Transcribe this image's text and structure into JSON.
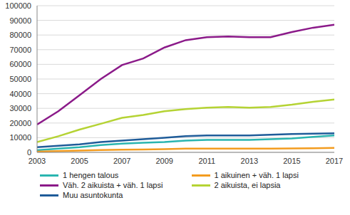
{
  "chart_data": {
    "type": "line",
    "x": [
      2003,
      2004,
      2005,
      2006,
      2007,
      2008,
      2009,
      2010,
      2011,
      2012,
      2013,
      2014,
      2015,
      2016,
      2017
    ],
    "xlim": [
      2003,
      2017
    ],
    "xticks": [
      2003,
      2005,
      2007,
      2009,
      2011,
      2013,
      2015,
      2017
    ],
    "ylim": [
      0,
      100000
    ],
    "yticks": [
      0,
      10000,
      20000,
      30000,
      40000,
      50000,
      60000,
      70000,
      80000,
      90000,
      100000
    ],
    "grid": true,
    "legend": "bottom",
    "series": [
      {
        "name": "1 hengen talous",
        "color": "#2ab5b0",
        "values": [
          1500,
          2500,
          3500,
          5000,
          6000,
          6500,
          7000,
          8000,
          8500,
          8500,
          8500,
          9000,
          9500,
          10500,
          11500
        ]
      },
      {
        "name": "1 aikuinen + väh. 1 lapsi",
        "color": "#f39c1f",
        "values": [
          500,
          800,
          1200,
          1600,
          1800,
          2000,
          2200,
          2500,
          2500,
          2500,
          2500,
          2600,
          2700,
          2800,
          3000
        ]
      },
      {
        "name": "Väh. 2 aikuista + väh. 1 lapsi",
        "color": "#8b1a89",
        "values": [
          19000,
          28000,
          39000,
          50000,
          59500,
          64000,
          71500,
          76500,
          78500,
          79000,
          78500,
          78500,
          82000,
          85000,
          87000
        ]
      },
      {
        "name": "2 aikuista, ei lapsia",
        "color": "#b5d334",
        "values": [
          7000,
          11000,
          15500,
          19500,
          23500,
          25500,
          28000,
          29500,
          30500,
          31000,
          30500,
          31000,
          32500,
          34500,
          36000
        ]
      },
      {
        "name": "Muu asuntokunta",
        "color": "#1f5c99",
        "values": [
          3500,
          4500,
          5500,
          7000,
          8000,
          9000,
          10000,
          11000,
          11500,
          11500,
          11500,
          12000,
          12500,
          12800,
          13000
        ]
      }
    ]
  }
}
